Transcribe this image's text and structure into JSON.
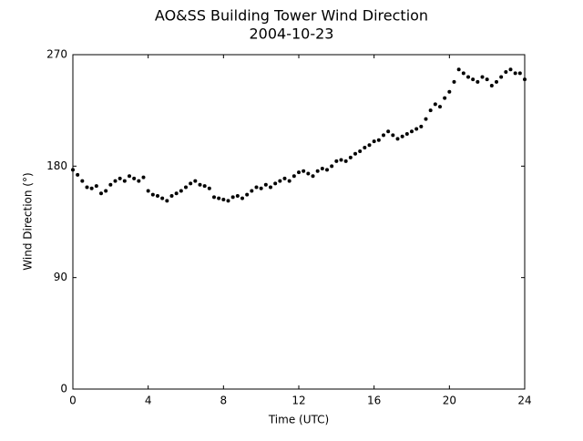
{
  "chart_data": {
    "type": "scatter",
    "title": "AO&SS Building Tower Wind Direction",
    "subtitle": "2004-10-23",
    "x_label": "Time (UTC)",
    "y_label": "Wind Direction (°)",
    "color": "#000000",
    "xlim": [
      0,
      24
    ],
    "xticks": [
      0,
      4,
      8,
      12,
      16,
      20,
      24
    ],
    "ylim": [
      0,
      270
    ],
    "yticks": [
      0,
      90,
      180,
      270
    ],
    "x": [
      0,
      0.25,
      0.5,
      0.75,
      1,
      1.25,
      1.5,
      1.75,
      2,
      2.25,
      2.5,
      2.75,
      3,
      3.25,
      3.5,
      3.75,
      4,
      4.25,
      4.5,
      4.75,
      5,
      5.25,
      5.5,
      5.75,
      6,
      6.25,
      6.5,
      6.75,
      7,
      7.25,
      7.5,
      7.75,
      8,
      8.25,
      8.5,
      8.75,
      9,
      9.25,
      9.5,
      9.75,
      10,
      10.25,
      10.5,
      10.75,
      11,
      11.25,
      11.5,
      11.75,
      12,
      12.25,
      12.5,
      12.75,
      13,
      13.25,
      13.5,
      13.75,
      14,
      14.25,
      14.5,
      14.75,
      15,
      15.25,
      15.5,
      15.75,
      16,
      16.25,
      16.5,
      16.75,
      17,
      17.25,
      17.5,
      17.75,
      18,
      18.25,
      18.5,
      18.75,
      19,
      19.25,
      19.5,
      19.75,
      20,
      20.25,
      20.5,
      20.75,
      21,
      21.25,
      21.5,
      21.75,
      22,
      22.25,
      22.5,
      22.75,
      23,
      23.25,
      23.5,
      23.75,
      24
    ],
    "values": [
      177,
      173,
      168,
      163,
      162,
      164,
      158,
      160,
      165,
      168,
      170,
      168,
      172,
      170,
      168,
      171,
      160,
      157,
      156,
      154,
      152,
      156,
      158,
      160,
      163,
      166,
      168,
      165,
      164,
      162,
      155,
      154,
      153,
      152,
      155,
      156,
      154,
      157,
      160,
      163,
      162,
      165,
      163,
      166,
      168,
      170,
      168,
      172,
      175,
      176,
      174,
      172,
      176,
      178,
      177,
      180,
      184,
      185,
      184,
      187,
      190,
      192,
      195,
      197,
      200,
      201,
      205,
      208,
      205,
      202,
      204,
      206,
      208,
      210,
      212,
      218,
      225,
      230,
      228,
      235,
      240,
      248,
      258,
      255,
      252,
      250,
      248,
      252,
      250,
      245,
      248,
      252,
      256,
      258,
      255,
      255,
      250
    ]
  }
}
